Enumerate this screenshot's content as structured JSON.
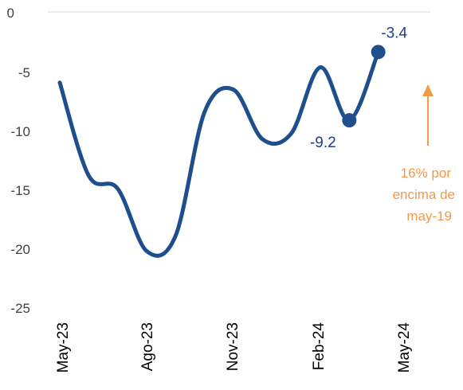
{
  "chart_data": {
    "type": "line",
    "title": "",
    "xlabel": "",
    "ylabel": "",
    "ylim": [
      -25,
      0
    ],
    "yticks": [
      "0",
      "-5",
      "-10",
      "-15",
      "-20",
      "-25"
    ],
    "xticks": [
      "May-23",
      "Ago-23",
      "Nov-23",
      "Feb-24",
      "May-24"
    ],
    "grid": "none",
    "series": [
      {
        "color": "#1f4e8c",
        "x": [
          "2023-05",
          "2023-06",
          "2023-07",
          "2023-08",
          "2023-09",
          "2023-10",
          "2023-11",
          "2023-12",
          "2024-01",
          "2024-02",
          "2024-03",
          "2024-04",
          "2024-05"
        ],
        "values": [
          -6.0,
          -13.9,
          -15.0,
          -20.3,
          -19.0,
          -8.5,
          -6.6,
          -10.8,
          -10.3,
          -4.7,
          -9.2,
          -3.4,
          null
        ]
      }
    ],
    "data_labels": [
      {
        "text": "-9.2",
        "index": 10
      },
      {
        "text": "-3.4",
        "index": 11
      }
    ],
    "annotation": {
      "lines": [
        "16% por",
        "encima de",
        "may-19"
      ],
      "color": "#f2994a"
    }
  }
}
